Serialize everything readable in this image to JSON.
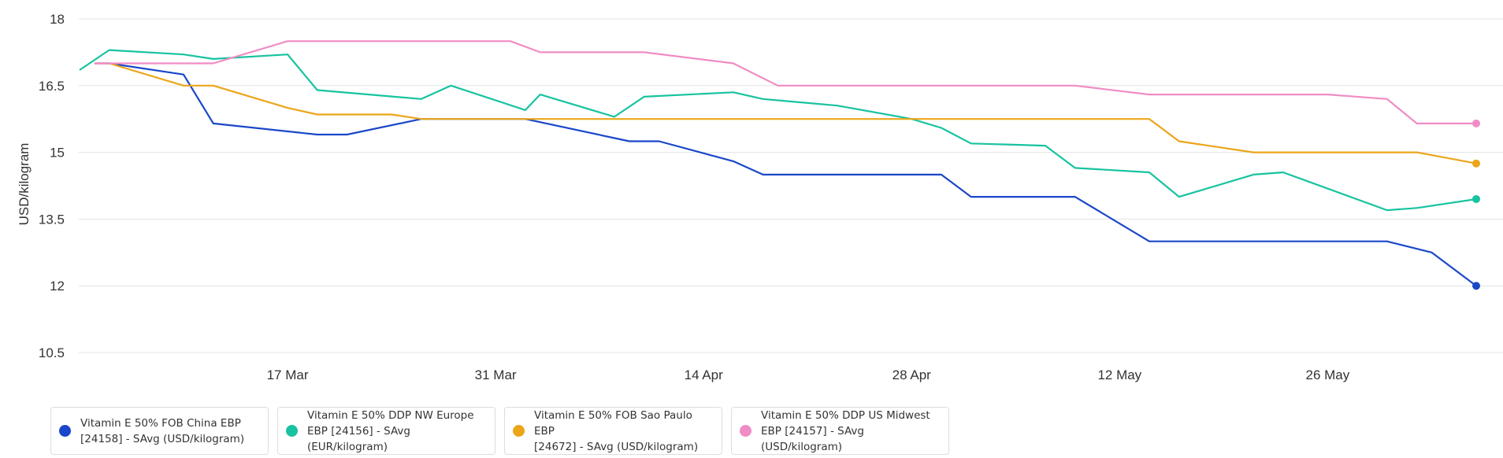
{
  "chart_data": {
    "type": "line",
    "title": "",
    "xlabel": "",
    "ylabel": "USD/kilogram",
    "ylim": [
      10.5,
      18
    ],
    "yticks": [
      "10.5",
      "12",
      "13.5",
      "15",
      "16.5",
      "18"
    ],
    "xlim": [
      "2025-03-03",
      "2025-06-05"
    ],
    "xticks": [
      {
        "date": "2025-03-17",
        "label": "17 Mar"
      },
      {
        "date": "2025-03-31",
        "label": "31 Mar"
      },
      {
        "date": "2025-04-14",
        "label": "14 Apr"
      },
      {
        "date": "2025-04-28",
        "label": "28 Apr"
      },
      {
        "date": "2025-05-12",
        "label": "12 May"
      },
      {
        "date": "2025-05-26",
        "label": "26 May"
      }
    ],
    "grid": "horizontal",
    "legend_position": "bottom",
    "series": [
      {
        "name": "Vitamin E 50% FOB China EBP [24158] - SAvg (USD/kilogram)",
        "color": "#1a47c9",
        "points": [
          [
            "2025-03-04",
            17.0
          ],
          [
            "2025-03-05",
            17.0
          ],
          [
            "2025-03-10",
            16.75
          ],
          [
            "2025-03-12",
            15.65
          ],
          [
            "2025-03-19",
            15.4
          ],
          [
            "2025-03-21",
            15.4
          ],
          [
            "2025-03-26",
            15.75
          ],
          [
            "2025-03-28",
            15.75
          ],
          [
            "2025-04-02",
            15.75
          ],
          [
            "2025-04-09",
            15.25
          ],
          [
            "2025-04-11",
            15.25
          ],
          [
            "2025-04-16",
            14.8
          ],
          [
            "2025-04-18",
            14.5
          ],
          [
            "2025-04-30",
            14.5
          ],
          [
            "2025-05-02",
            14.0
          ],
          [
            "2025-05-09",
            14.0
          ],
          [
            "2025-05-14",
            13.0
          ],
          [
            "2025-05-30",
            13.0
          ],
          [
            "2025-06-02",
            12.75
          ],
          [
            "2025-06-05",
            12.0
          ]
        ]
      },
      {
        "name": "Vitamin E 50% DDP NW Europe EBP [24156] - SAvg (EUR/kilogram)",
        "color": "#17c3a0",
        "points": [
          [
            "2025-03-03",
            16.85
          ],
          [
            "2025-03-05",
            17.3
          ],
          [
            "2025-03-10",
            17.2
          ],
          [
            "2025-03-12",
            17.1
          ],
          [
            "2025-03-17",
            17.2
          ],
          [
            "2025-03-19",
            16.4
          ],
          [
            "2025-03-26",
            16.2
          ],
          [
            "2025-03-28",
            16.5
          ],
          [
            "2025-04-02",
            15.95
          ],
          [
            "2025-04-03",
            16.3
          ],
          [
            "2025-04-08",
            15.8
          ],
          [
            "2025-04-10",
            16.25
          ],
          [
            "2025-04-16",
            16.35
          ],
          [
            "2025-04-18",
            16.2
          ],
          [
            "2025-04-23",
            16.05
          ],
          [
            "2025-04-28",
            15.75
          ],
          [
            "2025-04-30",
            15.55
          ],
          [
            "2025-05-02",
            15.2
          ],
          [
            "2025-05-07",
            15.15
          ],
          [
            "2025-05-09",
            14.65
          ],
          [
            "2025-05-14",
            14.55
          ],
          [
            "2025-05-16",
            14.0
          ],
          [
            "2025-05-21",
            14.5
          ],
          [
            "2025-05-23",
            14.55
          ],
          [
            "2025-05-30",
            13.7
          ],
          [
            "2025-06-01",
            13.75
          ],
          [
            "2025-06-05",
            13.95
          ]
        ]
      },
      {
        "name": "Vitamin E 50% FOB Sao Paulo EBP [24672] - SAvg (USD/kilogram)",
        "color": "#eba51a",
        "points": [
          [
            "2025-03-04",
            17.0
          ],
          [
            "2025-03-05",
            17.0
          ],
          [
            "2025-03-10",
            16.5
          ],
          [
            "2025-03-12",
            16.5
          ],
          [
            "2025-03-17",
            16.0
          ],
          [
            "2025-03-19",
            15.85
          ],
          [
            "2025-03-24",
            15.85
          ],
          [
            "2025-03-26",
            15.75
          ],
          [
            "2025-05-14",
            15.75
          ],
          [
            "2025-05-16",
            15.25
          ],
          [
            "2025-05-21",
            15.0
          ],
          [
            "2025-06-01",
            15.0
          ],
          [
            "2025-06-05",
            14.75
          ]
        ]
      },
      {
        "name": "Vitamin E 50% DDP US Midwest EBP [24157] - SAvg (USD/kilogram)",
        "color": "#f08cc5",
        "points": [
          [
            "2025-03-04",
            17.0
          ],
          [
            "2025-03-12",
            17.0
          ],
          [
            "2025-03-17",
            17.5
          ],
          [
            "2025-04-01",
            17.5
          ],
          [
            "2025-04-03",
            17.25
          ],
          [
            "2025-04-10",
            17.25
          ],
          [
            "2025-04-16",
            17.0
          ],
          [
            "2025-04-19",
            16.5
          ],
          [
            "2025-05-09",
            16.5
          ],
          [
            "2025-05-14",
            16.3
          ],
          [
            "2025-05-26",
            16.3
          ],
          [
            "2025-05-30",
            16.2
          ],
          [
            "2025-06-01",
            15.65
          ],
          [
            "2025-06-05",
            15.65
          ]
        ]
      }
    ]
  },
  "legend": [
    {
      "line1": "Vitamin E 50% FOB China EBP",
      "line2": "[24158] - SAvg (USD/kilogram)",
      "color": "#1a47c9"
    },
    {
      "line1": "Vitamin E 50% DDP NW Europe",
      "line2": "EBP [24156] - SAvg (EUR/kilogram)",
      "color": "#17c3a0"
    },
    {
      "line1": "Vitamin E 50% FOB Sao Paulo EBP",
      "line2": "[24672] - SAvg (USD/kilogram)",
      "color": "#eba51a"
    },
    {
      "line1": "Vitamin E 50% DDP US Midwest",
      "line2": "EBP [24157] - SAvg (USD/kilogram)",
      "color": "#f08cc5"
    }
  ]
}
